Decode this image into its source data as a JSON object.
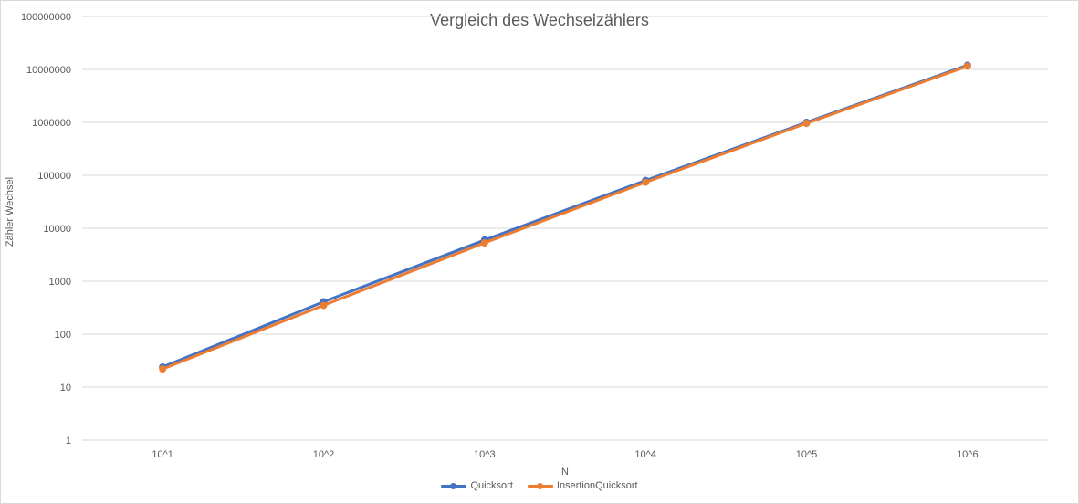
{
  "chart_data": {
    "type": "line",
    "title": "Vergleich des Wechselzählers",
    "xlabel": "N",
    "ylabel": "Zähler Wechsel",
    "categories": [
      "10^1",
      "10^2",
      "10^3",
      "10^4",
      "10^5",
      "10^6"
    ],
    "y_scale": "log",
    "ylim": [
      1,
      100000000
    ],
    "y_ticks": [
      "1",
      "10",
      "100",
      "1000",
      "10000",
      "100000",
      "1000000",
      "10000000",
      "100000000"
    ],
    "grid": true,
    "legend_position": "bottom",
    "series": [
      {
        "name": "Quicksort",
        "color": "#4472c4",
        "values": [
          24,
          410,
          6000,
          80000,
          1000000,
          12000000
        ]
      },
      {
        "name": "InsertionQuicksort",
        "color": "#ed7d31",
        "values": [
          22,
          350,
          5300,
          74000,
          960000,
          11500000
        ]
      }
    ]
  }
}
